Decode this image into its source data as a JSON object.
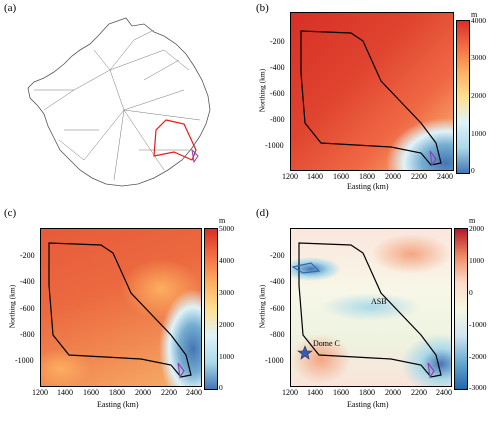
{
  "panels": {
    "a": {
      "label": "(a)"
    },
    "b": {
      "label": "(b)",
      "unit": "m",
      "cbar_ticks": [
        "4000",
        "3000",
        "2000",
        "1000",
        "0"
      ],
      "cbar_colors": [
        "#d73027",
        "#f46d43",
        "#fdae61",
        "#fee090",
        "#e0f3f8",
        "#abd9e9",
        "#4575b4"
      ]
    },
    "c": {
      "label": "(c)",
      "unit": "m",
      "cbar_ticks": [
        "5000",
        "4000",
        "3000",
        "2000",
        "1000",
        "0"
      ],
      "cbar_colors": [
        "#d73027",
        "#f46d43",
        "#fdae61",
        "#fee090",
        "#e0f3f8",
        "#abd9e9",
        "#4575b4"
      ]
    },
    "d": {
      "label": "(d)",
      "unit": "m",
      "cbar_ticks": [
        "2000",
        "1000",
        "0",
        "-1000",
        "-2000",
        "-3000"
      ],
      "cbar_colors": [
        "#d73027",
        "#f46d43",
        "#fdae61",
        "#f7f7e0",
        "#e0f3f8",
        "#abd9e9",
        "#4575b4"
      ],
      "annotations": {
        "asb": "ASB",
        "dome_c": "Dome C"
      }
    }
  },
  "axes": {
    "xlabel": "Easting (km)",
    "ylabel": "Northing (km)",
    "xticks": [
      "1200",
      "1400",
      "1600",
      "1800",
      "2000",
      "2200",
      "2400"
    ],
    "yticks": [
      "-200",
      "-400",
      "-600",
      "-800",
      "-1000"
    ]
  }
}
